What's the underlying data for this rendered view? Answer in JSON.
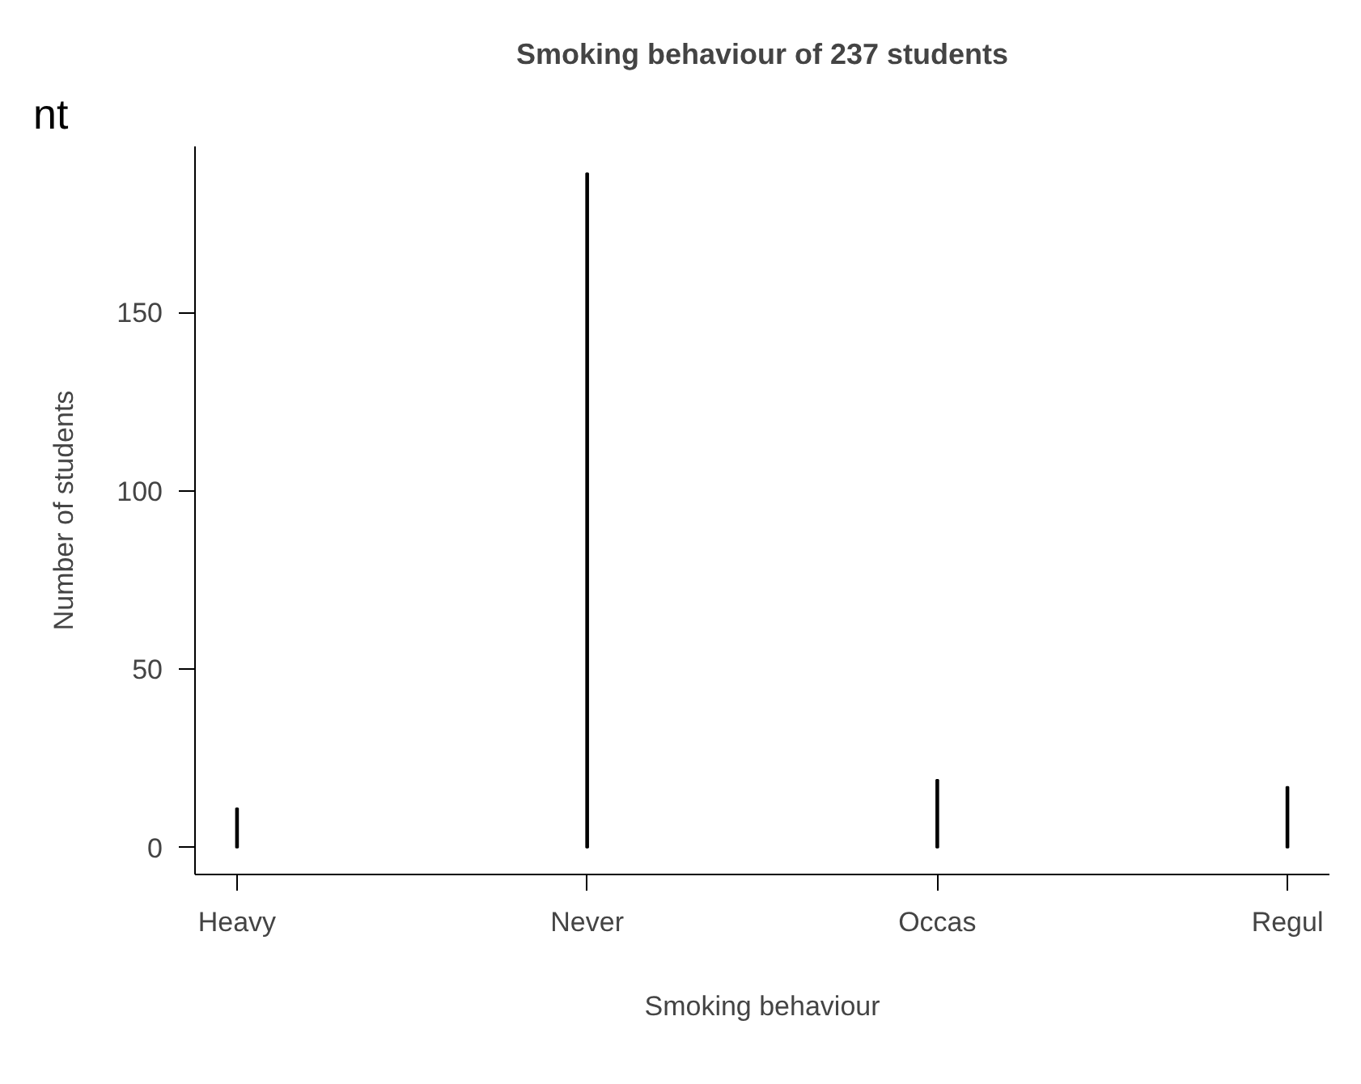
{
  "chart_data": {
    "type": "bar",
    "title": "Smoking behaviour of 237 students",
    "xlabel": "Smoking behaviour",
    "ylabel": "Number of students",
    "categories": [
      "Heavy",
      "Never",
      "Occas",
      "Regul"
    ],
    "values": [
      11,
      189,
      19,
      17
    ],
    "color": "#000000",
    "ylim": [
      -7.56,
      196.56
    ],
    "yticks": [
      0,
      50,
      100,
      150
    ],
    "grid": false,
    "annotations": [
      "nt"
    ]
  }
}
